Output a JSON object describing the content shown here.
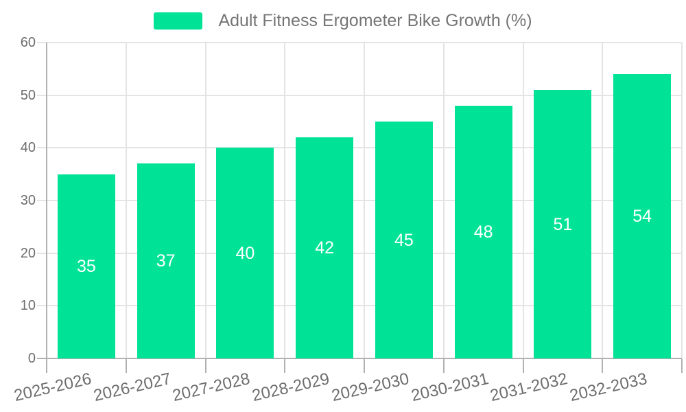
{
  "chart_data": {
    "type": "bar",
    "title": "",
    "series_label": "Adult Fitness Ergometer Bike Growth (%)",
    "categories": [
      "2025-2026",
      "2026-2027",
      "2027-2028",
      "2028-2029",
      "2029-2030",
      "2030-2031",
      "2031-2032",
      "2032-2033"
    ],
    "values": [
      35,
      37,
      40,
      42,
      45,
      48,
      51,
      54
    ],
    "xlabel": "",
    "ylabel": "",
    "ylim": [
      0,
      60
    ],
    "yticks": [
      0,
      10,
      20,
      30,
      40,
      50,
      60
    ],
    "grid": true,
    "legend_position": "top",
    "x_label_rotation": -13,
    "colors": {
      "bar": "#00E396",
      "value_label": "#ffffff",
      "grid_line": "#e4e4e4",
      "axis_line": "#b1b1b1",
      "tick_label": "#6e6e6e",
      "legend_text": "#757575",
      "background": "#ffffff"
    }
  }
}
